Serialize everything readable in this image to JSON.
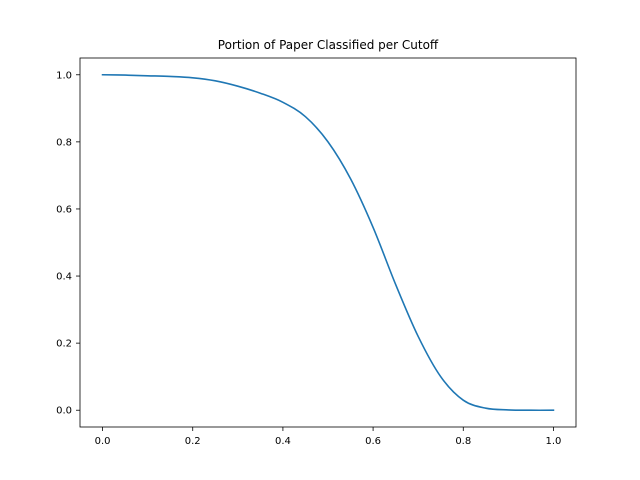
{
  "chart_data": {
    "type": "line",
    "title": "Portion of Paper Classified per Cutoff",
    "xlabel": "",
    "ylabel": "",
    "xlim": [
      -0.05,
      1.05
    ],
    "ylim": [
      -0.05,
      1.05
    ],
    "xticks": [
      0.0,
      0.2,
      0.4,
      0.6,
      0.8,
      1.0
    ],
    "xtick_labels": [
      "0.0",
      "0.2",
      "0.4",
      "0.6",
      "0.8",
      "1.0"
    ],
    "yticks": [
      0.0,
      0.2,
      0.4,
      0.6,
      0.8,
      1.0
    ],
    "ytick_labels": [
      "0.0",
      "0.2",
      "0.4",
      "0.6",
      "0.8",
      "1.0"
    ],
    "grid": false,
    "series": [
      {
        "color": "#1f77b4",
        "x": [
          0.0,
          0.05,
          0.1,
          0.15,
          0.2,
          0.25,
          0.3,
          0.35,
          0.4,
          0.45,
          0.5,
          0.55,
          0.6,
          0.65,
          0.7,
          0.75,
          0.8,
          0.85,
          0.9,
          0.95,
          1.0
        ],
        "y": [
          1.0,
          0.999,
          0.997,
          0.995,
          0.991,
          0.982,
          0.966,
          0.945,
          0.918,
          0.875,
          0.8,
          0.69,
          0.545,
          0.375,
          0.22,
          0.1,
          0.03,
          0.006,
          0.001,
          0.0,
          0.0
        ]
      }
    ]
  }
}
